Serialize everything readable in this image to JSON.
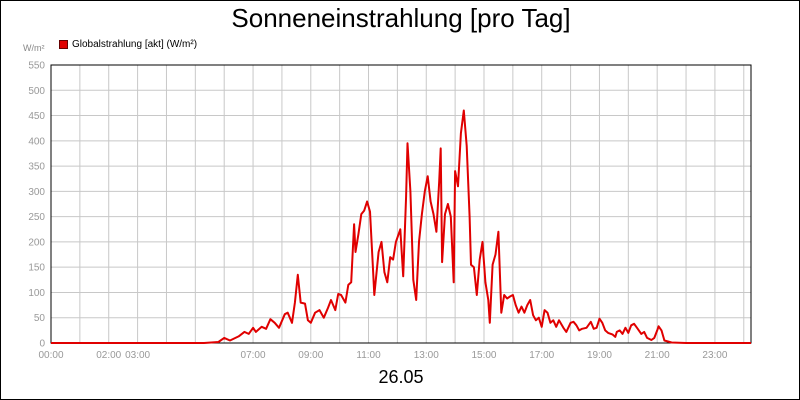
{
  "chart_data": {
    "type": "line",
    "title": "Sonneneinstrahlung [pro Tag]",
    "ylabel": "W/m²",
    "xlabel": "26.05",
    "ylim": [
      0,
      550
    ],
    "yticks": [
      0,
      50,
      100,
      150,
      200,
      250,
      300,
      350,
      400,
      450,
      500,
      550
    ],
    "xlim": [
      0,
      24.25
    ],
    "xticks": [
      {
        "x": 0,
        "label": "00:00"
      },
      {
        "x": 2,
        "label": "02:00"
      },
      {
        "x": 3,
        "label": "03:00"
      },
      {
        "x": 7,
        "label": "07:00"
      },
      {
        "x": 9,
        "label": "09:00"
      },
      {
        "x": 11,
        "label": "11:00"
      },
      {
        "x": 13,
        "label": "13:00"
      },
      {
        "x": 15,
        "label": "15:00"
      },
      {
        "x": 17,
        "label": "17:00"
      },
      {
        "x": 19,
        "label": "19:00"
      },
      {
        "x": 21,
        "label": "21:00"
      },
      {
        "x": 23,
        "label": "23:00"
      }
    ],
    "grid": true,
    "legend": "top-left",
    "series": [
      {
        "name": "Globalstrahlung [akt] (W/m²)",
        "color": "#e00000",
        "points": [
          [
            0,
            0
          ],
          [
            5.3,
            0
          ],
          [
            5.8,
            2
          ],
          [
            6.0,
            10
          ],
          [
            6.2,
            5
          ],
          [
            6.5,
            13
          ],
          [
            6.7,
            22
          ],
          [
            6.85,
            18
          ],
          [
            7.0,
            30
          ],
          [
            7.1,
            22
          ],
          [
            7.3,
            32
          ],
          [
            7.45,
            28
          ],
          [
            7.6,
            47
          ],
          [
            7.75,
            40
          ],
          [
            7.9,
            30
          ],
          [
            8.1,
            57
          ],
          [
            8.2,
            60
          ],
          [
            8.35,
            40
          ],
          [
            8.45,
            80
          ],
          [
            8.55,
            135
          ],
          [
            8.65,
            80
          ],
          [
            8.8,
            78
          ],
          [
            8.9,
            45
          ],
          [
            9.0,
            40
          ],
          [
            9.15,
            60
          ],
          [
            9.3,
            65
          ],
          [
            9.45,
            50
          ],
          [
            9.6,
            70
          ],
          [
            9.7,
            85
          ],
          [
            9.85,
            65
          ],
          [
            9.95,
            97
          ],
          [
            10.05,
            95
          ],
          [
            10.2,
            80
          ],
          [
            10.3,
            115
          ],
          [
            10.4,
            120
          ],
          [
            10.5,
            235
          ],
          [
            10.55,
            180
          ],
          [
            10.65,
            215
          ],
          [
            10.75,
            255
          ],
          [
            10.85,
            262
          ],
          [
            10.95,
            280
          ],
          [
            11.05,
            260
          ],
          [
            11.15,
            150
          ],
          [
            11.2,
            95
          ],
          [
            11.35,
            180
          ],
          [
            11.45,
            200
          ],
          [
            11.55,
            140
          ],
          [
            11.65,
            120
          ],
          [
            11.75,
            170
          ],
          [
            11.85,
            165
          ],
          [
            11.95,
            200
          ],
          [
            12.1,
            225
          ],
          [
            12.2,
            132
          ],
          [
            12.3,
            290
          ],
          [
            12.35,
            395
          ],
          [
            12.45,
            300
          ],
          [
            12.55,
            125
          ],
          [
            12.65,
            85
          ],
          [
            12.75,
            200
          ],
          [
            12.85,
            255
          ],
          [
            12.95,
            300
          ],
          [
            13.05,
            330
          ],
          [
            13.15,
            280
          ],
          [
            13.25,
            255
          ],
          [
            13.35,
            220
          ],
          [
            13.45,
            320
          ],
          [
            13.5,
            385
          ],
          [
            13.55,
            160
          ],
          [
            13.65,
            255
          ],
          [
            13.75,
            275
          ],
          [
            13.85,
            250
          ],
          [
            13.95,
            120
          ],
          [
            14.0,
            340
          ],
          [
            14.1,
            310
          ],
          [
            14.2,
            415
          ],
          [
            14.3,
            460
          ],
          [
            14.4,
            390
          ],
          [
            14.5,
            250
          ],
          [
            14.55,
            155
          ],
          [
            14.65,
            150
          ],
          [
            14.75,
            95
          ],
          [
            14.85,
            165
          ],
          [
            14.95,
            200
          ],
          [
            15.05,
            120
          ],
          [
            15.15,
            85
          ],
          [
            15.2,
            40
          ],
          [
            15.3,
            155
          ],
          [
            15.4,
            175
          ],
          [
            15.5,
            220
          ],
          [
            15.6,
            60
          ],
          [
            15.7,
            95
          ],
          [
            15.8,
            88
          ],
          [
            15.9,
            92
          ],
          [
            16.0,
            95
          ],
          [
            16.1,
            75
          ],
          [
            16.2,
            60
          ],
          [
            16.3,
            72
          ],
          [
            16.4,
            60
          ],
          [
            16.5,
            75
          ],
          [
            16.6,
            85
          ],
          [
            16.7,
            55
          ],
          [
            16.8,
            45
          ],
          [
            16.9,
            50
          ],
          [
            17.0,
            32
          ],
          [
            17.1,
            65
          ],
          [
            17.2,
            60
          ],
          [
            17.3,
            40
          ],
          [
            17.4,
            45
          ],
          [
            17.5,
            32
          ],
          [
            17.6,
            45
          ],
          [
            17.75,
            30
          ],
          [
            17.85,
            22
          ],
          [
            18.0,
            40
          ],
          [
            18.1,
            42
          ],
          [
            18.2,
            35
          ],
          [
            18.3,
            25
          ],
          [
            18.4,
            28
          ],
          [
            18.55,
            30
          ],
          [
            18.7,
            42
          ],
          [
            18.8,
            28
          ],
          [
            18.9,
            30
          ],
          [
            19.0,
            48
          ],
          [
            19.1,
            40
          ],
          [
            19.2,
            25
          ],
          [
            19.3,
            20
          ],
          [
            19.45,
            17
          ],
          [
            19.55,
            12
          ],
          [
            19.6,
            22
          ],
          [
            19.7,
            25
          ],
          [
            19.8,
            18
          ],
          [
            19.9,
            30
          ],
          [
            20.0,
            20
          ],
          [
            20.1,
            35
          ],
          [
            20.2,
            38
          ],
          [
            20.3,
            30
          ],
          [
            20.45,
            18
          ],
          [
            20.55,
            22
          ],
          [
            20.65,
            10
          ],
          [
            20.8,
            6
          ],
          [
            20.9,
            10
          ],
          [
            21.0,
            25
          ],
          [
            21.05,
            33
          ],
          [
            21.15,
            25
          ],
          [
            21.25,
            5
          ],
          [
            21.5,
            1
          ],
          [
            22.0,
            0
          ],
          [
            24.25,
            0
          ]
        ]
      }
    ]
  }
}
